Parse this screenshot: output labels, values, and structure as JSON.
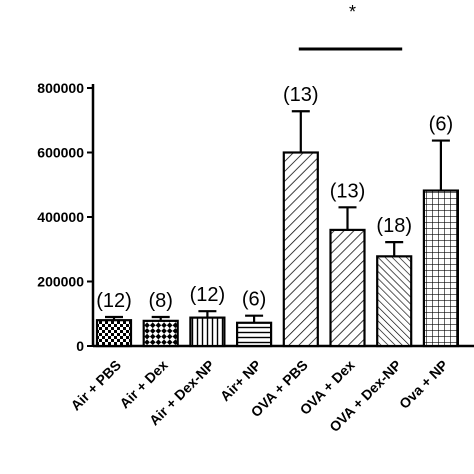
{
  "chart_data": {
    "type": "bar",
    "title": "",
    "xlabel": "",
    "ylabel": "",
    "ylim": [
      0,
      800000
    ],
    "y_ticks": [
      0,
      200000,
      400000,
      600000,
      800000
    ],
    "y_tick_labels": [
      "0",
      "200000",
      "400000",
      "600000",
      "800000"
    ],
    "grid": false,
    "categories": [
      "Air + PBS",
      "Air + Dex",
      "Air + Dex-NP",
      "Air+ NP",
      "OVA + PBS",
      "OVA + Dex",
      "OVA + Dex-NP",
      "Ova + NP"
    ],
    "values": [
      80000,
      78000,
      88000,
      72000,
      600000,
      360000,
      278000,
      482000
    ],
    "errors": [
      10000,
      12000,
      20000,
      22000,
      128000,
      70000,
      44000,
      155000
    ],
    "n_labels": [
      "(12)",
      "(8)",
      "(12)",
      "(6)",
      "(13)",
      "(13)",
      "(18)",
      "(6)"
    ],
    "patterns": [
      "checker-fine",
      "checker-coarse",
      "vertical",
      "horizontal",
      "diag-left",
      "diag-left",
      "diag-right-dense",
      "grid"
    ],
    "bar_color": "#000000",
    "significance": {
      "label": "*",
      "from": "OVA + PBS",
      "to": "OVA + Dex-NP"
    }
  }
}
